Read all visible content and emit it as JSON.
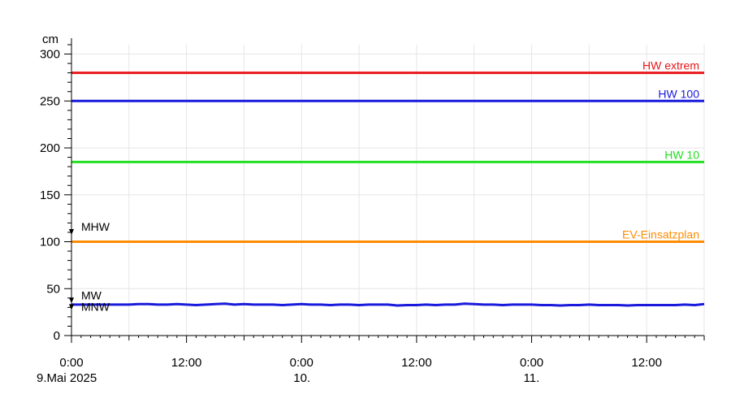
{
  "chart_data": {
    "type": "line",
    "ylabel": "cm",
    "ylim": [
      0,
      310
    ],
    "yticks": [
      0,
      50,
      100,
      150,
      200,
      250,
      300
    ],
    "xlim_hours": [
      0,
      66
    ],
    "xticks": [
      {
        "h": 0,
        "time": "0:00",
        "date": "9.Mai 2025"
      },
      {
        "h": 12,
        "time": "12:00",
        "date": ""
      },
      {
        "h": 24,
        "time": "0:00",
        "date": "10."
      },
      {
        "h": 36,
        "time": "12:00",
        "date": ""
      },
      {
        "h": 48,
        "time": "0:00",
        "date": "11."
      },
      {
        "h": 60,
        "time": "12:00",
        "date": ""
      }
    ],
    "grid": true,
    "reference_lines": [
      {
        "name": "HW extrem",
        "value": 280,
        "color": "#e8161b"
      },
      {
        "name": "HW 100",
        "value": 250,
        "color": "#1a1adc"
      },
      {
        "name": "HW 10",
        "value": 185,
        "color": "#22e022"
      },
      {
        "name": "EV-Einsatzplan",
        "value": 100,
        "color": "#ff8c00"
      }
    ],
    "markers": [
      {
        "name": "MHW",
        "value": 110
      },
      {
        "name": "MW",
        "value": 37
      },
      {
        "name": "MNW",
        "value": 30
      }
    ],
    "series": [
      {
        "color": "#1a1adc",
        "x": [
          0,
          1,
          2,
          3,
          4,
          5,
          6,
          7,
          8,
          9,
          10,
          11,
          12,
          13,
          14,
          15,
          16,
          17,
          18,
          19,
          20,
          21,
          22,
          23,
          24,
          25,
          26,
          27,
          28,
          29,
          30,
          31,
          32,
          33,
          34,
          35,
          36,
          37,
          38,
          39,
          40,
          41,
          42,
          43,
          44,
          45,
          46,
          47,
          48,
          49,
          50,
          51,
          52,
          53,
          54,
          55,
          56,
          57,
          58,
          59,
          60,
          61,
          62,
          63,
          64,
          65,
          66
        ],
        "y": [
          33,
          33,
          33,
          33,
          33,
          33,
          33,
          33.5,
          33.5,
          33,
          33,
          33.5,
          33,
          32.5,
          33,
          33.5,
          34,
          33,
          33.5,
          33,
          33,
          33,
          32.5,
          33,
          33.5,
          33,
          33,
          32.5,
          33,
          33,
          32.5,
          33,
          33,
          33,
          32,
          32.5,
          32.5,
          33,
          32.5,
          33,
          33,
          34,
          33.5,
          33,
          33,
          32.5,
          33,
          33,
          33,
          32.5,
          32.5,
          32,
          32.5,
          32.5,
          33,
          32.5,
          32.5,
          32.5,
          32,
          32.5,
          32.5,
          32.5,
          32.5,
          32.5,
          33,
          32.5,
          33.5
        ]
      }
    ]
  }
}
